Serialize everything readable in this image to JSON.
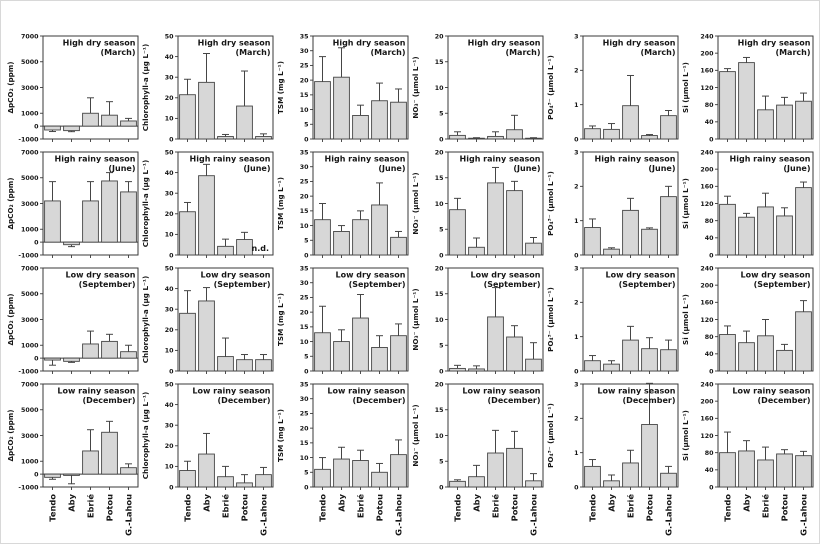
{
  "figure": {
    "description_visible_text_only": true,
    "row_titles": [
      {
        "title": "High dry season",
        "subtitle": "(March)"
      },
      {
        "title": "High rainy season",
        "subtitle": "(June)"
      },
      {
        "title": "Low dry season",
        "subtitle": "(September)"
      },
      {
        "title": "Low rainy season",
        "subtitle": "(December)"
      }
    ],
    "column_labels": [
      "ΔpCO₂ (ppm)",
      "Chlorophyll-a (µg L⁻¹)",
      "TSM (mg L⁻¹)",
      "NO₃⁻ (µmol L⁻¹)",
      "PO₄³⁻ (µmol L⁻¹)",
      "Si (µmol L⁻¹)"
    ],
    "x_categories": [
      "Tendo",
      "Aby",
      "Ebrié",
      "Potou",
      "G.-Lahou"
    ],
    "no_data_label": "n.d.",
    "colors": {
      "bar_fill": "#d7d7d7",
      "bar_stroke": "#454545",
      "axis": "#3a3a3a",
      "text": "#161616",
      "background": "#ffffff"
    }
  },
  "chart_data": {
    "type": "bar",
    "layout": "small-multiples 4 rows (seasons) x 6 columns (variables), error bars, legend none, grid off",
    "categories": [
      "Tendo",
      "Aby",
      "Ebrié",
      "Potou",
      "G.-Lahou"
    ],
    "rows": [
      {
        "title": "High dry season",
        "subtitle": "(March)"
      },
      {
        "title": "High rainy season",
        "subtitle": "(June)"
      },
      {
        "title": "Low dry season",
        "subtitle": "(September)"
      },
      {
        "title": "Low rainy season",
        "subtitle": "(December)"
      }
    ],
    "columns": [
      {
        "ylabel": "ΔpCO₂ (ppm)",
        "ylim": [
          -1000,
          7000
        ],
        "yticks": [
          -1000,
          0,
          1000,
          3000,
          5000,
          7000
        ]
      },
      {
        "ylabel": "Chlorophyll-a (µg L⁻¹)",
        "ylim": [
          0,
          50
        ],
        "yticks": [
          0,
          10,
          20,
          30,
          40,
          50
        ]
      },
      {
        "ylabel": "TSM (mg L⁻¹)",
        "ylim": [
          0,
          35
        ],
        "yticks": [
          0,
          5,
          10,
          15,
          20,
          25,
          30,
          35
        ]
      },
      {
        "ylabel": "NO₃⁻ (µmol L⁻¹)",
        "ylim": [
          0,
          20
        ],
        "yticks": [
          0,
          5,
          10,
          15,
          20
        ]
      },
      {
        "ylabel": "PO₄³⁻ (µmol L⁻¹)",
        "ylim": [
          0,
          3
        ],
        "yticks": [
          0,
          1,
          2,
          3
        ]
      },
      {
        "ylabel": "Si (µmol L⁻¹)",
        "ylim": [
          0,
          240
        ],
        "yticks": [
          0,
          40,
          80,
          120,
          160,
          200,
          240
        ]
      }
    ],
    "charts": [
      {
        "row": 0,
        "col": 0,
        "values": [
          -300,
          -350,
          1000,
          850,
          400
        ],
        "errors": [
          120,
          80,
          1200,
          1050,
          200
        ]
      },
      {
        "row": 0,
        "col": 1,
        "values": [
          21.5,
          27.5,
          1.2,
          16,
          1.2
        ],
        "errors": [
          7.5,
          14,
          1,
          17,
          1.3
        ]
      },
      {
        "row": 0,
        "col": 2,
        "values": [
          19.5,
          21,
          8,
          13,
          12.5
        ],
        "errors": [
          8.5,
          10,
          3.5,
          6,
          4.5
        ]
      },
      {
        "row": 0,
        "col": 3,
        "values": [
          0.7,
          0.15,
          0.5,
          1.8,
          0.15
        ],
        "errors": [
          0.7,
          0.1,
          0.9,
          2.8,
          0.1
        ]
      },
      {
        "row": 0,
        "col": 4,
        "values": [
          0.3,
          0.28,
          0.97,
          0.1,
          0.68
        ],
        "errors": [
          0.08,
          0.17,
          0.88,
          0.03,
          0.15
        ]
      },
      {
        "row": 0,
        "col": 5,
        "values": [
          157,
          178,
          68,
          79,
          88
        ],
        "errors": [
          7,
          12,
          32,
          18,
          19
        ]
      },
      {
        "row": 1,
        "col": 0,
        "values": [
          3200,
          -200,
          3200,
          4750,
          3900
        ],
        "errors": [
          1500,
          150,
          1500,
          650,
          800
        ]
      },
      {
        "row": 1,
        "col": 1,
        "values": [
          21,
          38.5,
          4.2,
          7.5,
          null
        ],
        "errors": [
          4.5,
          5.5,
          3.5,
          3.5,
          null
        ],
        "note": "n.d."
      },
      {
        "row": 1,
        "col": 2,
        "values": [
          12,
          8,
          12,
          17,
          6
        ],
        "errors": [
          5.5,
          2,
          3,
          7.5,
          2
        ]
      },
      {
        "row": 1,
        "col": 3,
        "values": [
          8.8,
          1.5,
          14,
          12.5,
          2.3
        ],
        "errors": [
          2.2,
          1.8,
          3,
          1.8,
          1.1
        ]
      },
      {
        "row": 1,
        "col": 4,
        "values": [
          0.8,
          0.17,
          1.3,
          0.75,
          1.7
        ],
        "errors": [
          0.25,
          0.04,
          0.35,
          0.04,
          0.3
        ]
      },
      {
        "row": 1,
        "col": 5,
        "values": [
          118,
          88,
          112,
          91,
          157
        ],
        "errors": [
          19,
          9,
          32,
          19,
          13
        ]
      },
      {
        "row": 2,
        "col": 0,
        "values": [
          -150,
          -250,
          1100,
          1300,
          500
        ],
        "errors": [
          400,
          80,
          1000,
          550,
          500
        ]
      },
      {
        "row": 2,
        "col": 1,
        "values": [
          28,
          34,
          7,
          5.5,
          5.5
        ],
        "errors": [
          11,
          6.5,
          9,
          2.5,
          2.5
        ]
      },
      {
        "row": 2,
        "col": 2,
        "values": [
          13,
          10,
          18,
          8,
          12
        ],
        "errors": [
          9,
          4,
          8,
          4,
          4
        ]
      },
      {
        "row": 2,
        "col": 3,
        "values": [
          0.5,
          0.4,
          10.5,
          6.6,
          2.3
        ],
        "errors": [
          0.6,
          0.6,
          5.7,
          2.2,
          3.2
        ]
      },
      {
        "row": 2,
        "col": 4,
        "values": [
          0.3,
          0.2,
          0.9,
          0.65,
          0.62
        ],
        "errors": [
          0.15,
          0.1,
          0.4,
          0.32,
          0.28
        ]
      },
      {
        "row": 2,
        "col": 5,
        "values": [
          85,
          66,
          82,
          48,
          138
        ],
        "errors": [
          20,
          27,
          38,
          14,
          26
        ]
      },
      {
        "row": 3,
        "col": 0,
        "values": [
          -250,
          -100,
          1800,
          3250,
          500
        ],
        "errors": [
          150,
          650,
          1650,
          850,
          300
        ]
      },
      {
        "row": 3,
        "col": 1,
        "values": [
          8,
          16,
          5,
          2,
          6
        ],
        "errors": [
          4.5,
          10,
          5,
          4,
          3.5
        ]
      },
      {
        "row": 3,
        "col": 2,
        "values": [
          6,
          9.5,
          9,
          5,
          11
        ],
        "errors": [
          4,
          4,
          3.5,
          3,
          5
        ]
      },
      {
        "row": 3,
        "col": 3,
        "values": [
          1.1,
          2,
          6.6,
          7.5,
          1.2
        ],
        "errors": [
          0.3,
          2.2,
          4.4,
          3.3,
          1.4
        ]
      },
      {
        "row": 3,
        "col": 4,
        "values": [
          0.6,
          0.18,
          0.7,
          1.82,
          0.4
        ],
        "errors": [
          0.2,
          0.17,
          0.37,
          1.2,
          0.2
        ]
      },
      {
        "row": 3,
        "col": 5,
        "values": [
          80,
          84,
          63,
          77,
          73
        ],
        "errors": [
          48,
          24,
          30,
          10,
          10
        ]
      }
    ]
  }
}
